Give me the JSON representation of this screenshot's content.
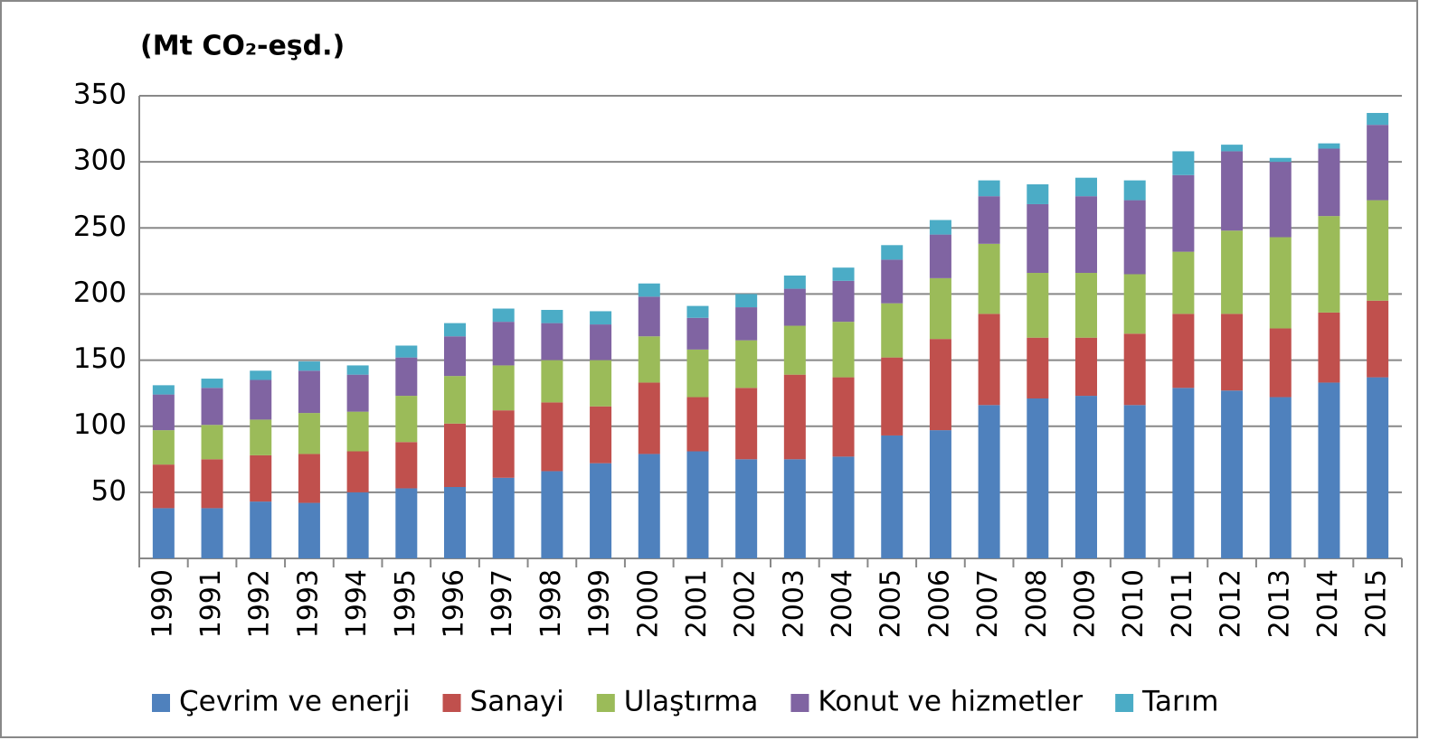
{
  "chart_data": {
    "type": "stacked_bar",
    "title": "(Mt CO₂-eşd.)",
    "categories": [
      "1990",
      "1991",
      "1992",
      "1993",
      "1994",
      "1995",
      "1996",
      "1997",
      "1998",
      "1999",
      "2000",
      "2001",
      "2002",
      "2003",
      "2004",
      "2005",
      "2006",
      "2007",
      "2008",
      "2009",
      "2010",
      "2011",
      "2012",
      "2013",
      "2014",
      "2015"
    ],
    "series": [
      {
        "name": "Çevrim ve enerji",
        "color": "#4f81bd",
        "values": [
          38,
          38,
          43,
          42,
          50,
          53,
          54,
          61,
          66,
          72,
          79,
          81,
          75,
          75,
          77,
          93,
          97,
          116,
          121,
          123,
          116,
          129,
          127,
          122,
          133,
          137
        ]
      },
      {
        "name": "Sanayi",
        "color": "#c0504d",
        "values": [
          33,
          37,
          35,
          37,
          31,
          35,
          48,
          51,
          52,
          43,
          54,
          41,
          54,
          64,
          60,
          59,
          69,
          69,
          46,
          44,
          54,
          56,
          58,
          52,
          53,
          58
        ]
      },
      {
        "name": "Ulaştırma",
        "color": "#9bbb59",
        "values": [
          26,
          26,
          27,
          31,
          30,
          35,
          36,
          34,
          32,
          35,
          35,
          36,
          36,
          37,
          42,
          41,
          46,
          53,
          49,
          49,
          45,
          47,
          63,
          69,
          73,
          76
        ]
      },
      {
        "name": "Konut ve hizmetler",
        "color": "#8064a2",
        "values": [
          27,
          28,
          30,
          32,
          28,
          29,
          30,
          33,
          28,
          27,
          30,
          24,
          25,
          28,
          31,
          33,
          33,
          36,
          52,
          58,
          56,
          58,
          60,
          57,
          51,
          57
        ]
      },
      {
        "name": "Tarım",
        "color": "#4bacc6",
        "values": [
          7,
          7,
          7,
          7,
          7,
          9,
          10,
          10,
          10,
          10,
          10,
          9,
          10,
          10,
          10,
          11,
          11,
          12,
          15,
          14,
          15,
          18,
          5,
          3,
          4,
          9
        ]
      }
    ],
    "ylim": [
      0,
      350
    ],
    "yticks": [
      50,
      100,
      150,
      200,
      250,
      300,
      350
    ],
    "grid": true,
    "legend": "bottom"
  }
}
